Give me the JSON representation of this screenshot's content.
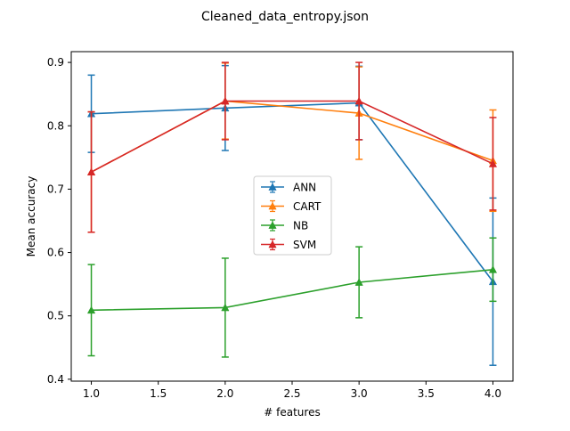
{
  "chart_data": {
    "type": "line",
    "title": "Cleaned_data_entropy.json",
    "xlabel": "# features",
    "ylabel": "Mean accuracy",
    "xlim": [
      0.85,
      4.15
    ],
    "ylim": [
      0.397,
      0.917
    ],
    "xticks": [
      1.0,
      1.5,
      2.0,
      2.5,
      3.0,
      3.5,
      4.0
    ],
    "xtick_labels": [
      "1.0",
      "1.5",
      "2.0",
      "2.5",
      "3.0",
      "3.5",
      "4.0"
    ],
    "yticks": [
      0.4,
      0.5,
      0.6,
      0.7,
      0.8,
      0.9
    ],
    "ytick_labels": [
      "0.4",
      "0.5",
      "0.6",
      "0.7",
      "0.8",
      "0.9"
    ],
    "grid": false,
    "legend_position": "center",
    "x": [
      1,
      2,
      3,
      4
    ],
    "series": [
      {
        "name": "ANN",
        "color": "#1f77b4",
        "values": [
          0.819,
          0.828,
          0.836,
          0.554
        ],
        "errors": [
          0.061,
          0.067,
          0.058,
          0.132
        ]
      },
      {
        "name": "CART",
        "color": "#ff7f0e",
        "values": [
          0.727,
          0.839,
          0.82,
          0.745
        ],
        "errors": [
          0.095,
          0.06,
          0.073,
          0.08
        ]
      },
      {
        "name": "NB",
        "color": "#2ca02c",
        "values": [
          0.509,
          0.513,
          0.553,
          0.573
        ],
        "errors": [
          0.072,
          0.078,
          0.056,
          0.05
        ]
      },
      {
        "name": "SVM",
        "color": "#d62728",
        "values": [
          0.727,
          0.839,
          0.839,
          0.74
        ],
        "errors": [
          0.095,
          0.061,
          0.061,
          0.073
        ]
      }
    ]
  }
}
